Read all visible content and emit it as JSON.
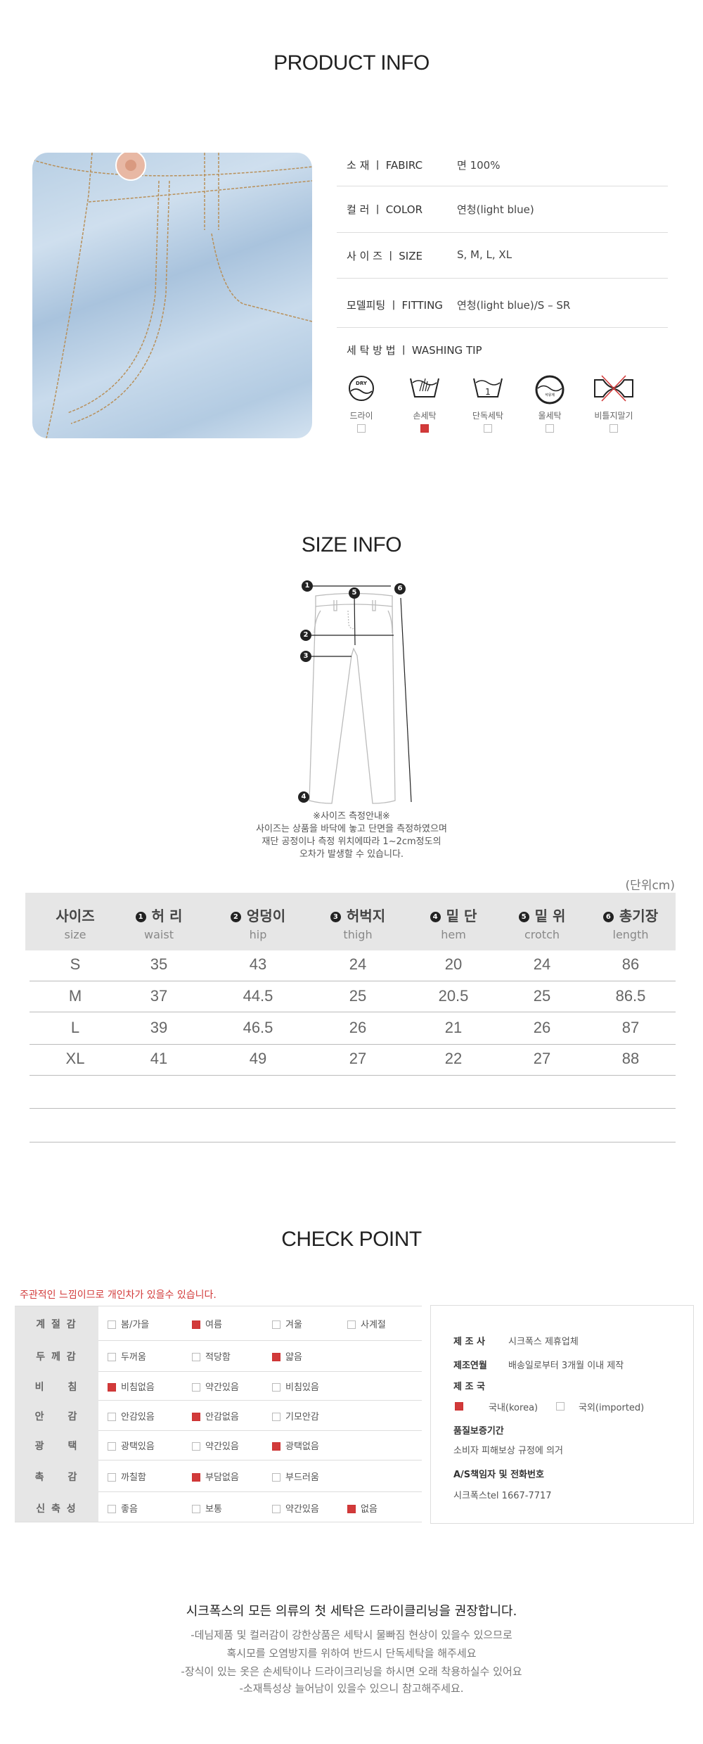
{
  "product_info": {
    "title": "PRODUCT INFO",
    "rows": [
      {
        "label": "소 재 ㅣ FABIRC",
        "value": "면 100%"
      },
      {
        "label": "컬 러 ㅣ COLOR",
        "value": "연청(light blue)"
      },
      {
        "label": "사 이 즈 ㅣ SIZE",
        "value": "S, M, L, XL"
      },
      {
        "label": "모델피팅 ㅣ FITTING",
        "value": "연청(light blue)/S  –  SR"
      },
      {
        "label": "세 탁 방 법 ㅣ WASHING TIP",
        "value": ""
      }
    ],
    "washing": [
      {
        "icon": "dry-clean-icon",
        "label": "드라이",
        "checked": false
      },
      {
        "icon": "hand-wash-icon",
        "label": "손세탁",
        "checked": true
      },
      {
        "icon": "separate-wash-icon",
        "label": "단독세탁",
        "checked": false
      },
      {
        "icon": "wool-wash-icon",
        "label": "울세탁",
        "checked": false
      },
      {
        "icon": "no-wring-icon",
        "label": "비틀지말기",
        "checked": false
      }
    ]
  },
  "size_info": {
    "title": "SIZE INFO",
    "markers": [
      "1",
      "2",
      "3",
      "4",
      "5",
      "6"
    ],
    "guide_title": "※사이즈 측정안내※",
    "guide_lines": [
      "사이즈는 상품을 바닥에 놓고 단면을 측정하였으며",
      "재단 공정이나 측정 위치에따라 1~2cm정도의",
      "오차가 발생할 수 있습니다."
    ],
    "unit": "(단위cm)",
    "columns": [
      {
        "num": "",
        "ko": "사이즈",
        "en": "size"
      },
      {
        "num": "1",
        "ko": "허 리",
        "en": "waist"
      },
      {
        "num": "2",
        "ko": "엉덩이",
        "en": "hip"
      },
      {
        "num": "3",
        "ko": "허벅지",
        "en": "thigh"
      },
      {
        "num": "4",
        "ko": "밑 단",
        "en": "hem"
      },
      {
        "num": "5",
        "ko": "밑 위",
        "en": "crotch"
      },
      {
        "num": "6",
        "ko": "총기장",
        "en": "length"
      }
    ],
    "rows": [
      [
        "S",
        "35",
        "43",
        "24",
        "20",
        "24",
        "86"
      ],
      [
        "M",
        "37",
        "44.5",
        "25",
        "20.5",
        "25",
        "86.5"
      ],
      [
        "L",
        "39",
        "46.5",
        "26",
        "21",
        "26",
        "87"
      ],
      [
        "XL",
        "41",
        "49",
        "27",
        "22",
        "27",
        "88"
      ]
    ]
  },
  "check_point": {
    "title": "CHECK POINT",
    "note": "주관적인 느낌이므로 개인차가 있을수 있습니다.",
    "rows": [
      {
        "label": "계 절 감",
        "options": [
          {
            "label": "봄/가을",
            "checked": false
          },
          {
            "label": "여름",
            "checked": true
          },
          {
            "label": "겨울",
            "checked": false
          },
          {
            "label": "사계절",
            "checked": false
          }
        ]
      },
      {
        "label": "두 께 감",
        "options": [
          {
            "label": "두꺼움",
            "checked": false
          },
          {
            "label": "적당함",
            "checked": false
          },
          {
            "label": "얇음",
            "checked": true
          }
        ]
      },
      {
        "label": "비　　침",
        "options": [
          {
            "label": "비침없음",
            "checked": true
          },
          {
            "label": "약간있음",
            "checked": false
          },
          {
            "label": "비침있음",
            "checked": false
          }
        ]
      },
      {
        "label": "안　　감",
        "options": [
          {
            "label": "안감있음",
            "checked": false
          },
          {
            "label": "안감없음",
            "checked": true
          },
          {
            "label": "기모안감",
            "checked": false
          }
        ]
      },
      {
        "label": "광　　택",
        "options": [
          {
            "label": "광택있음",
            "checked": false
          },
          {
            "label": "약간있음",
            "checked": false
          },
          {
            "label": "광택없음",
            "checked": true
          }
        ]
      },
      {
        "label": "촉　　감",
        "options": [
          {
            "label": "까칠함",
            "checked": false
          },
          {
            "label": "부담없음",
            "checked": true
          },
          {
            "label": "부드러움",
            "checked": false
          }
        ]
      },
      {
        "label": "신 축 성",
        "options": [
          {
            "label": "좋음",
            "checked": false
          },
          {
            "label": "보통",
            "checked": false
          },
          {
            "label": "약간있음",
            "checked": false
          },
          {
            "label": "없음",
            "checked": true
          }
        ]
      }
    ],
    "maker": {
      "manufacturer_label": "제 조 사",
      "manufacturer": "시크폭스 제휴업체",
      "date_label": "제조연월",
      "date": "배송일로부터 3개월 이내 제작",
      "country_label": "제 조 국",
      "country_options": [
        {
          "label": "국내(korea)",
          "checked": true
        },
        {
          "label": "국외(imported)",
          "checked": false
        }
      ],
      "warranty_label": "품질보증기간",
      "warranty": "소비자 피해보상 규정에 의거",
      "as_label": "A/S책임자 및 전화번호",
      "as": "시크폭스tel 1667-7717"
    }
  },
  "care_notice": {
    "title": "시크폭스의 모든 의류의 첫 세탁은 드라이클리닝을 권장합니다.",
    "lines": [
      "-데님제품 및 컬러감이 강한상품은 세탁시 물빠짐 현상이 있을수 있으므로",
      "혹시모를 오염방지를 위하여 반드시 단독세탁을 해주세요",
      "-장식이 있는 옷은 손세탁이나 드라이크리닝을 하시면 오래 착용하실수 있어요",
      "-소재특성상 늘어남이 있을수 있으니 참고해주세요."
    ]
  },
  "colors": {
    "accent": "#d23a3a",
    "header_bg": "#e6e6e6",
    "denim": "#b8cfe4"
  }
}
